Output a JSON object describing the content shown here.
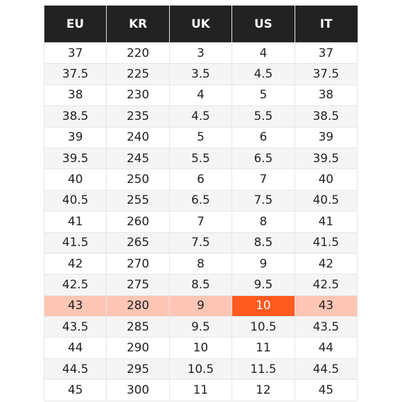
{
  "table": {
    "headers": [
      "EU",
      "KR",
      "UK",
      "US",
      "IT"
    ],
    "rows": [
      [
        "37",
        "220",
        "3",
        "4",
        "37"
      ],
      [
        "37.5",
        "225",
        "3.5",
        "4.5",
        "37.5"
      ],
      [
        "38",
        "230",
        "4",
        "5",
        "38"
      ],
      [
        "38.5",
        "235",
        "4.5",
        "5.5",
        "38.5"
      ],
      [
        "39",
        "240",
        "5",
        "6",
        "39"
      ],
      [
        "39.5",
        "245",
        "5.5",
        "6.5",
        "39.5"
      ],
      [
        "40",
        "250",
        "6",
        "7",
        "40"
      ],
      [
        "40.5",
        "255",
        "6.5",
        "7.5",
        "40.5"
      ],
      [
        "41",
        "260",
        "7",
        "8",
        "41"
      ],
      [
        "41.5",
        "265",
        "7.5",
        "8.5",
        "41.5"
      ],
      [
        "42",
        "270",
        "8",
        "9",
        "42"
      ],
      [
        "42.5",
        "275",
        "8.5",
        "9.5",
        "42.5"
      ],
      [
        "43",
        "280",
        "9",
        "10",
        "43"
      ],
      [
        "43.5",
        "285",
        "9.5",
        "10.5",
        "43.5"
      ],
      [
        "44",
        "290",
        "10",
        "11",
        "44"
      ],
      [
        "44.5",
        "295",
        "10.5",
        "11.5",
        "44.5"
      ],
      [
        "45",
        "300",
        "11",
        "12",
        "45"
      ]
    ],
    "highlighted_row_index": 12,
    "highlighted_column": "US",
    "colors": {
      "header_background": "#222222",
      "highlight_row": "#ffc6b5",
      "highlight_cell": "#ff5a1f"
    }
  }
}
